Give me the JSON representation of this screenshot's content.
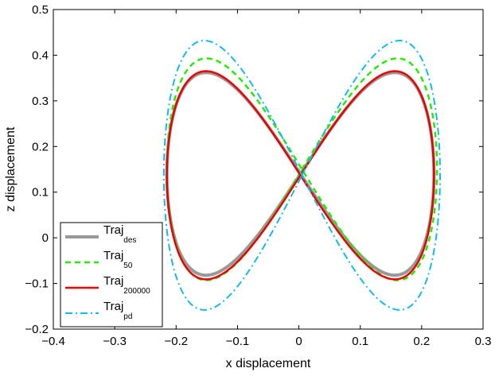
{
  "chart_data": {
    "type": "line",
    "title": "",
    "xlabel": "x displacement",
    "ylabel": "z displacement",
    "xlim": [
      -0.4,
      0.3
    ],
    "ylim": [
      -0.2,
      0.5
    ],
    "xticks": [
      -0.4,
      -0.3,
      -0.2,
      -0.1,
      0,
      0.1,
      0.2,
      0.3
    ],
    "yticks": [
      -0.2,
      -0.1,
      0,
      0.1,
      0.2,
      0.3,
      0.4,
      0.5
    ],
    "xtick_labels": [
      "−0.4",
      "−0.3",
      "−0.2",
      "−0.1",
      "0",
      "0.1",
      "0.2",
      "0.3"
    ],
    "ytick_labels": [
      "−0.2",
      "−0.1",
      "0",
      "0.1",
      "0.2",
      "0.3",
      "0.4",
      "0.5"
    ],
    "grid": false,
    "legend_position": "bottom-left",
    "figure_eight_model": "x = cx + ax·sin(t), z = cz + az·sin(2t), t in [0, 2π]",
    "series": [
      {
        "name": "Traj",
        "subscript": "des",
        "color": "#999999",
        "style": "solid",
        "width": 4,
        "params": {
          "center_x": 0.0025,
          "center_z": 0.14,
          "amp_x": 0.2175,
          "amp_z": 0.222
        }
      },
      {
        "name": "Traj",
        "subscript": "50",
        "color": "#22ee00",
        "style": "dashed",
        "width": 2.5,
        "params": {
          "center_x": 0.005,
          "center_z": 0.15,
          "amp_x": 0.22,
          "amp_z": 0.243
        }
      },
      {
        "name": "Traj",
        "subscript": "200000",
        "color": "#ee0000",
        "style": "solid",
        "width": 2.5,
        "params": {
          "center_x": 0.0025,
          "center_z": 0.137,
          "amp_x": 0.2175,
          "amp_z": 0.228
        }
      },
      {
        "name": "Traj",
        "subscript": "pd",
        "color": "#11bbee",
        "style": "dashdot",
        "width": 2,
        "params": {
          "center_x": 0.005,
          "center_z": 0.137,
          "amp_x": 0.225,
          "amp_z": 0.295
        }
      }
    ]
  }
}
